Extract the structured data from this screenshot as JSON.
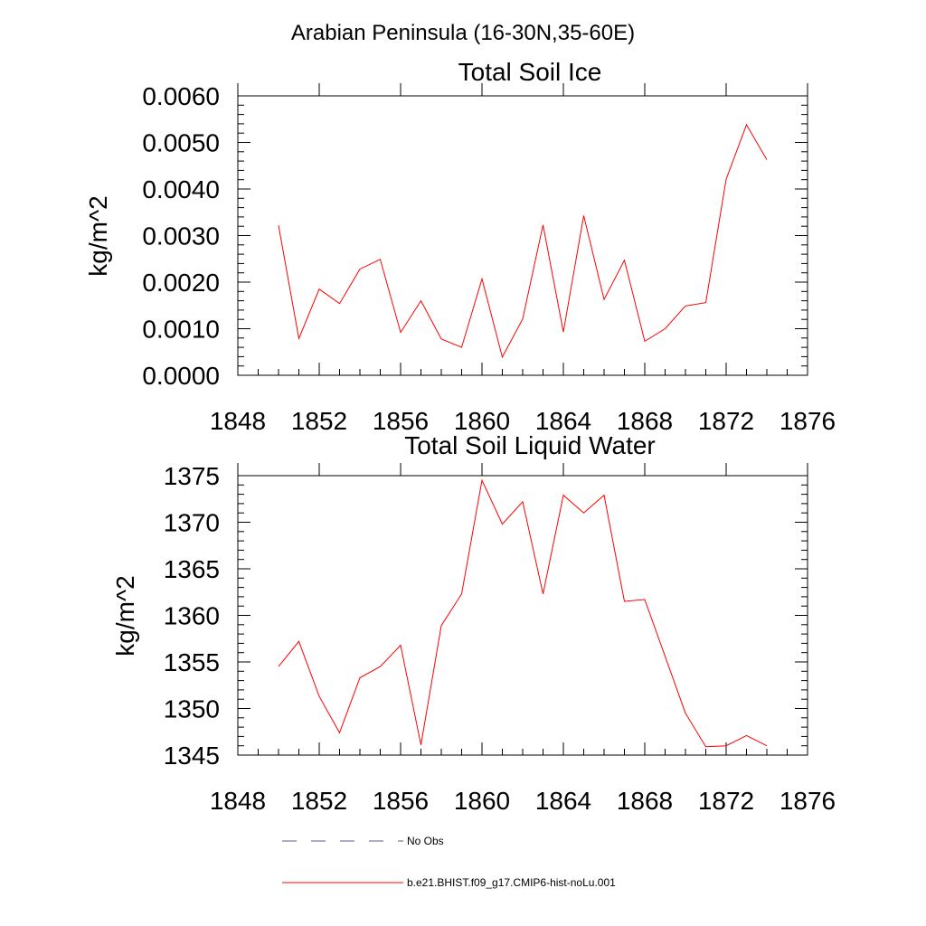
{
  "figure": {
    "title": "Arabian Peninsula (16-30N,35-60E)"
  },
  "chart_data": [
    {
      "type": "line",
      "title": "Total Soil Ice",
      "xlabel": "",
      "ylabel": "kg/m^2",
      "xlim": [
        1848,
        1876
      ],
      "ylim": [
        0.0,
        0.006
      ],
      "x_ticks": [
        "1848",
        "1852",
        "1856",
        "1860",
        "1864",
        "1868",
        "1872",
        "1876"
      ],
      "y_ticks": [
        "0.0000",
        "0.0010",
        "0.0020",
        "0.0030",
        "0.0040",
        "0.0050",
        "0.0060"
      ],
      "grid": false,
      "series": [
        {
          "name": "b.e21.BHIST.f09_g17.CMIP6-hist-noLu.001",
          "color": "#ff0000",
          "x": [
            1850,
            1851,
            1852,
            1853,
            1854,
            1855,
            1856,
            1857,
            1858,
            1859,
            1860,
            1861,
            1862,
            1863,
            1864,
            1865,
            1866,
            1867,
            1868,
            1869,
            1870,
            1871,
            1872,
            1873,
            1874
          ],
          "values": [
            0.00322,
            0.00079,
            0.00185,
            0.00154,
            0.00228,
            0.00249,
            0.00092,
            0.0016,
            0.00078,
            0.0006,
            0.00207,
            0.00039,
            0.00121,
            0.00323,
            0.00093,
            0.00343,
            0.00163,
            0.00247,
            0.00073,
            0.001,
            0.00149,
            0.00156,
            0.00421,
            0.00538,
            0.00463
          ]
        }
      ]
    },
    {
      "type": "line",
      "title": "Total Soil Liquid Water",
      "xlabel": "",
      "ylabel": "kg/m^2",
      "xlim": [
        1848,
        1876
      ],
      "ylim": [
        1345,
        1375
      ],
      "x_ticks": [
        "1848",
        "1852",
        "1856",
        "1860",
        "1864",
        "1868",
        "1872",
        "1876"
      ],
      "y_ticks": [
        "1345",
        "1350",
        "1355",
        "1360",
        "1365",
        "1370",
        "1375"
      ],
      "grid": false,
      "series": [
        {
          "name": "b.e21.BHIST.f09_g17.CMIP6-hist-noLu.001",
          "color": "#ff0000",
          "x": [
            1850,
            1851,
            1852,
            1853,
            1854,
            1855,
            1856,
            1857,
            1858,
            1859,
            1860,
            1861,
            1862,
            1863,
            1864,
            1865,
            1866,
            1867,
            1868,
            1869,
            1870,
            1871,
            1872,
            1873,
            1874
          ],
          "values": [
            1354.5,
            1357.2,
            1351.3,
            1347.4,
            1353.3,
            1354.5,
            1356.8,
            1346.1,
            1358.9,
            1362.3,
            1374.5,
            1369.8,
            1372.2,
            1362.3,
            1372.9,
            1371.0,
            1372.9,
            1361.5,
            1361.7,
            1355.6,
            1349.5,
            1345.9,
            1346.0,
            1347.1,
            1346.0
          ]
        }
      ]
    }
  ],
  "legend": {
    "placement": "bottom",
    "items": [
      {
        "label": "No Obs",
        "style": "dashed",
        "color": "#5a5a8c"
      },
      {
        "label": "b.e21.BHIST.f09_g17.CMIP6-hist-noLu.001",
        "style": "solid",
        "color": "#ff0000"
      }
    ]
  }
}
